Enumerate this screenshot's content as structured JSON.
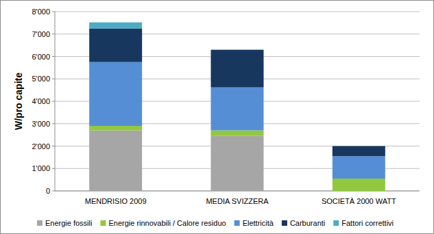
{
  "chart_data": {
    "type": "bar",
    "stacked": true,
    "grid": true,
    "legend": "bottom",
    "y_label": "W/pro capite",
    "categories": [
      "MENDRISIO 2009",
      "MEDIA SVIZZERA",
      "SOCIETÀ 2000 WATT"
    ],
    "ylim": [
      0,
      8000
    ],
    "yticks": [
      0,
      {
        "value": 1000,
        "label": "1'000"
      },
      {
        "value": 2000,
        "label": "2'000"
      },
      {
        "value": 3000,
        "label": "3'000"
      },
      {
        "value": 4000,
        "label": "4'000"
      },
      {
        "value": 5000,
        "label": "5'000"
      },
      {
        "value": 6000,
        "label": "6'000"
      },
      {
        "value": 7000,
        "label": "7'000"
      },
      {
        "value": 8000,
        "label": "8'000"
      }
    ],
    "series": [
      {
        "name": "Energie fossili",
        "color": "#a6a6a6",
        "values": [
          2700,
          2450,
          0
        ]
      },
      {
        "name": "Energie rinnovabili / Calore residuo",
        "color": "#92c83e",
        "values": [
          200,
          250,
          550
        ]
      },
      {
        "name": "Elettricità",
        "color": "#558ed5",
        "values": [
          2850,
          1920,
          1000
        ]
      },
      {
        "name": "Carburanti",
        "color": "#17375e",
        "values": [
          1500,
          1680,
          450
        ]
      },
      {
        "name": "Fattori correttivi",
        "color": "#4bacc6",
        "values": [
          270,
          0,
          0
        ]
      }
    ]
  }
}
